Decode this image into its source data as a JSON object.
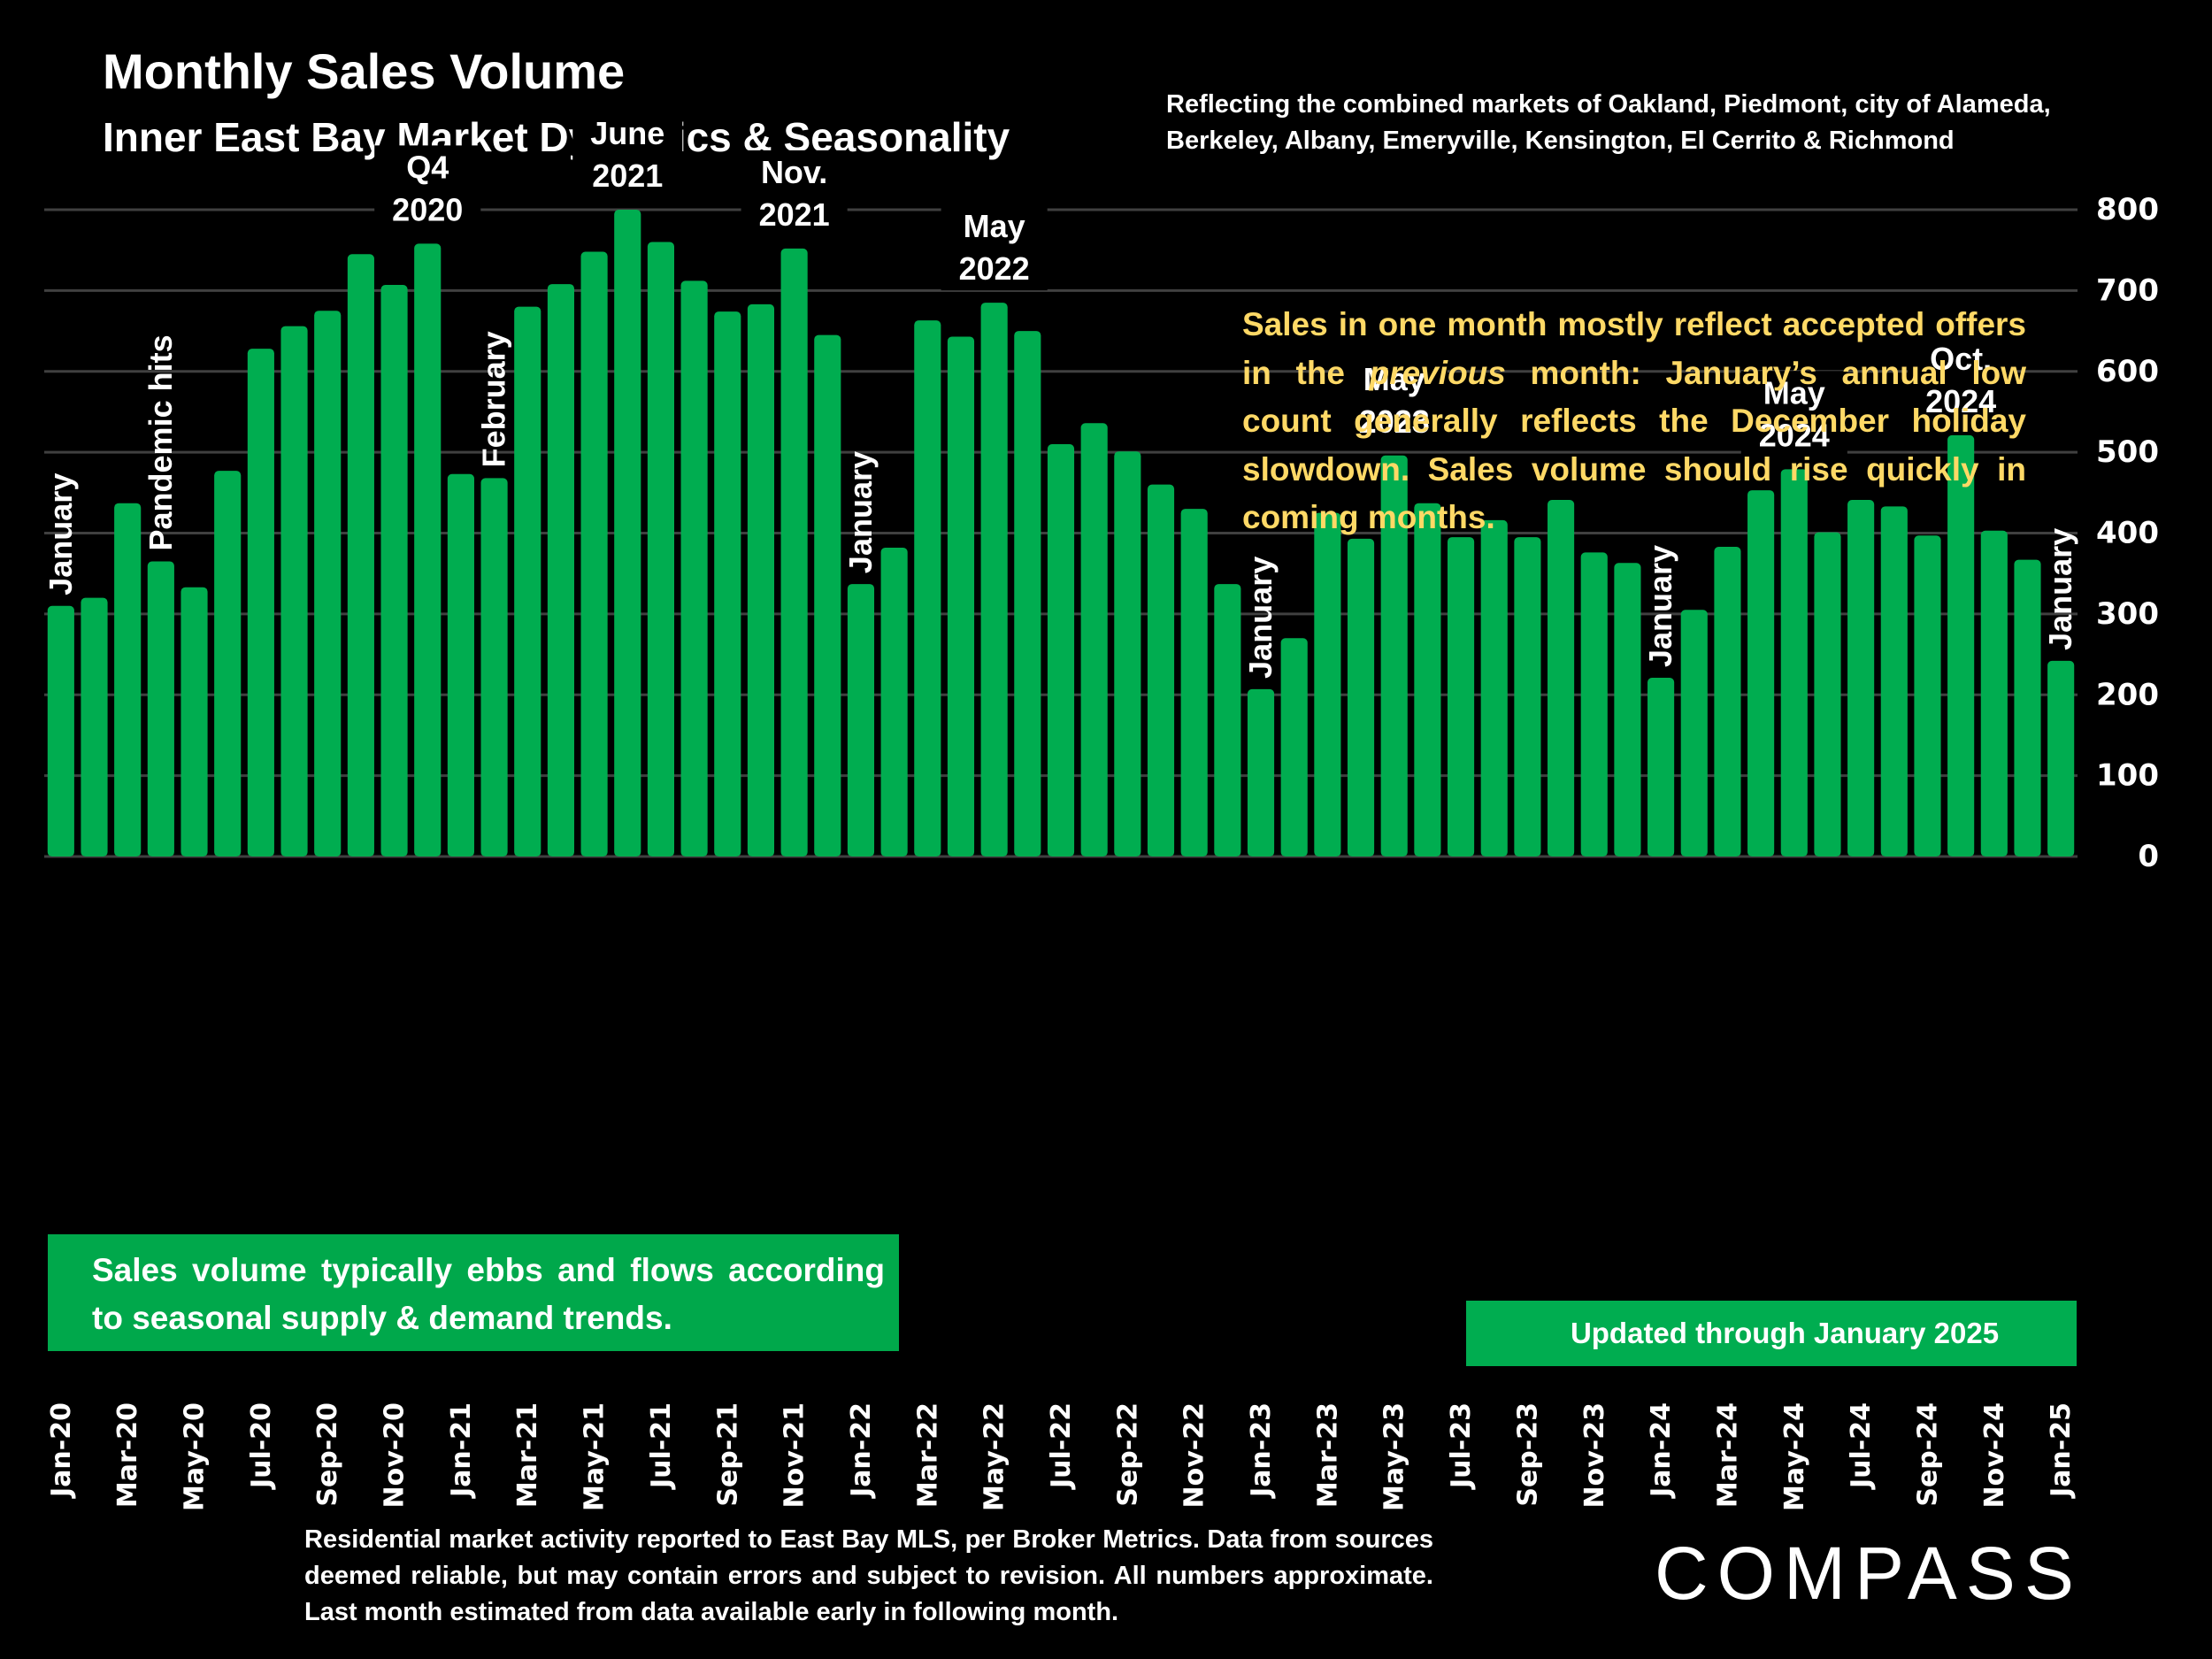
{
  "header": {
    "title": "Monthly Sales Volume",
    "subtitle": "Inner East Bay Market Dynamics & Seasonality",
    "markets_line1": "Reflecting the combined markets of Oakland, Piedmont, city of Alameda,",
    "markets_line2": "Berkeley, Albany, Emeryville, Kensington, El Cerrito & Richmond"
  },
  "note": {
    "part1": "Sales in one month mostly reflect accepted offers in the ",
    "italic": "previous",
    "part2": " month:  January’s annual low count generally reflects the December holiday slowdown. Sales volume should rise quickly in coming months."
  },
  "callouts": {
    "left": "Sales volume typically ebbs and flows according to seasonal supply & demand trends.",
    "right": "Updated through January 2025"
  },
  "footnote": "Residential market activity reported to East Bay MLS, per Broker Metrics. Data from sources deemed reliable, but may contain errors and subject to revision. All numbers approximate. Last month estimated from data available early in following month.",
  "logo": "COMPASS",
  "colors": {
    "bar": "#00AD50",
    "note": "#FFD966",
    "grid": "#404040",
    "background": "#000000"
  },
  "chart_data": {
    "type": "bar",
    "title": "Monthly Sales Volume",
    "subtitle": "Inner East Bay Market Dynamics & Seasonality",
    "xlabel": "",
    "ylabel": "",
    "ylim": [
      0,
      800
    ],
    "yticks": [
      0,
      100,
      200,
      300,
      400,
      500,
      600,
      700,
      800
    ],
    "y_axis_side": "right",
    "grid": true,
    "categories": [
      "Jan-20",
      "Feb-20",
      "Mar-20",
      "Apr-20",
      "May-20",
      "Jun-20",
      "Jul-20",
      "Aug-20",
      "Sep-20",
      "Oct-20",
      "Nov-20",
      "Dec-20",
      "Jan-21",
      "Feb-21",
      "Mar-21",
      "Apr-21",
      "May-21",
      "Jun-21",
      "Jul-21",
      "Aug-21",
      "Sep-21",
      "Oct-21",
      "Nov-21",
      "Dec-21",
      "Jan-22",
      "Feb-22",
      "Mar-22",
      "Apr-22",
      "May-22",
      "Jun-22",
      "Jul-22",
      "Aug-22",
      "Sep-22",
      "Oct-22",
      "Nov-22",
      "Dec-22",
      "Jan-23",
      "Feb-23",
      "Mar-23",
      "Apr-23",
      "May-23",
      "Jun-23",
      "Jul-23",
      "Aug-23",
      "Sep-23",
      "Oct-23",
      "Nov-23",
      "Dec-23",
      "Jan-24",
      "Feb-24",
      "Mar-24",
      "Apr-24",
      "May-24",
      "Jun-24",
      "Jul-24",
      "Aug-24",
      "Sep-24",
      "Oct-24",
      "Nov-24",
      "Dec-24",
      "Jan-25"
    ],
    "tick_labels": [
      "Jan-20",
      "Mar-20",
      "May-20",
      "Jul-20",
      "Sep-20",
      "Nov-20",
      "Jan-21",
      "Mar-21",
      "May-21",
      "Jul-21",
      "Sep-21",
      "Nov-21",
      "Jan-22",
      "Mar-22",
      "May-22",
      "Jul-22",
      "Sep-22",
      "Nov-22",
      "Jan-23",
      "Mar-23",
      "May-23",
      "Jul-23",
      "Sep-23",
      "Nov-23",
      "Jan-24",
      "Mar-24",
      "May-24",
      "Jul-24",
      "Sep-24",
      "Nov-24",
      "Jan-25"
    ],
    "values": [
      310,
      320,
      437,
      365,
      333,
      477,
      628,
      656,
      675,
      745,
      707,
      758,
      473,
      468,
      680,
      708,
      748,
      800,
      760,
      712,
      674,
      683,
      752,
      645,
      337,
      382,
      663,
      643,
      685,
      650,
      510,
      536,
      501,
      460,
      430,
      337,
      207,
      270,
      425,
      393,
      496,
      437,
      395,
      416,
      395,
      441,
      376,
      363,
      221,
      305,
      383,
      453,
      479,
      401,
      441,
      433,
      397,
      521,
      403,
      367,
      242
    ],
    "annotations": [
      {
        "text": "January",
        "month_index": 0,
        "orientation": "vertical"
      },
      {
        "text": "Pandemic hits",
        "month_index": 3,
        "orientation": "vertical"
      },
      {
        "text": "Q4\n2020",
        "month_index": 11,
        "orientation": "horizontal"
      },
      {
        "text": "February",
        "month_index": 13,
        "orientation": "vertical"
      },
      {
        "text": "June\n2021",
        "month_index": 17,
        "orientation": "horizontal"
      },
      {
        "text": "Nov.\n2021",
        "month_index": 22,
        "orientation": "horizontal"
      },
      {
        "text": "January",
        "month_index": 24,
        "orientation": "vertical"
      },
      {
        "text": "May\n2022",
        "month_index": 28,
        "orientation": "horizontal"
      },
      {
        "text": "January",
        "month_index": 36,
        "orientation": "vertical"
      },
      {
        "text": "May\n2023",
        "month_index": 40,
        "orientation": "horizontal"
      },
      {
        "text": "January",
        "month_index": 48,
        "orientation": "vertical"
      },
      {
        "text": "May\n2024",
        "month_index": 52,
        "orientation": "horizontal"
      },
      {
        "text": "Oct.\n2024",
        "month_index": 57,
        "orientation": "horizontal"
      },
      {
        "text": "January",
        "month_index": 60,
        "orientation": "vertical"
      }
    ]
  }
}
